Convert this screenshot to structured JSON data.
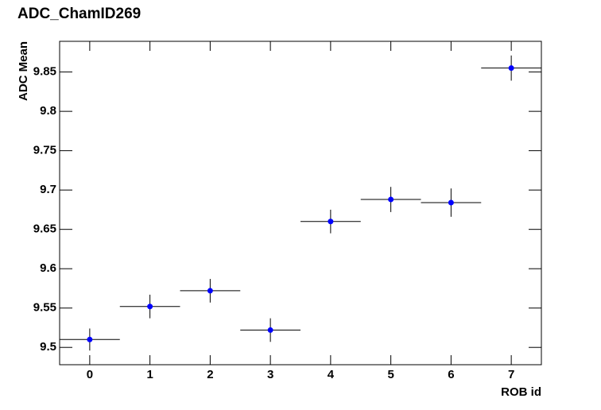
{
  "chart_data": {
    "type": "errorbar",
    "title": "ADC_ChamID269",
    "x_label": "ROB id",
    "y_label": "ADC Mean",
    "x": [
      0,
      1,
      2,
      3,
      4,
      5,
      6,
      7
    ],
    "values": [
      9.51,
      9.552,
      9.572,
      9.522,
      9.66,
      9.688,
      9.684,
      9.855
    ],
    "errors": [
      0.014,
      0.015,
      0.015,
      0.015,
      0.015,
      0.016,
      0.018,
      0.016
    ],
    "xerr": [
      0.5,
      0.5,
      0.5,
      0.5,
      0.5,
      0.5,
      0.5,
      0.5
    ],
    "color": "#0000ff",
    "xlim": [
      -0.5,
      7.5
    ],
    "xticks": [
      0,
      1,
      2,
      3,
      4,
      5,
      6,
      7
    ],
    "ylim": [
      9.478,
      9.889
    ],
    "yticks": [
      9.5,
      9.55,
      9.6,
      9.65,
      9.7,
      9.75,
      9.8,
      9.85
    ],
    "grid": false
  }
}
